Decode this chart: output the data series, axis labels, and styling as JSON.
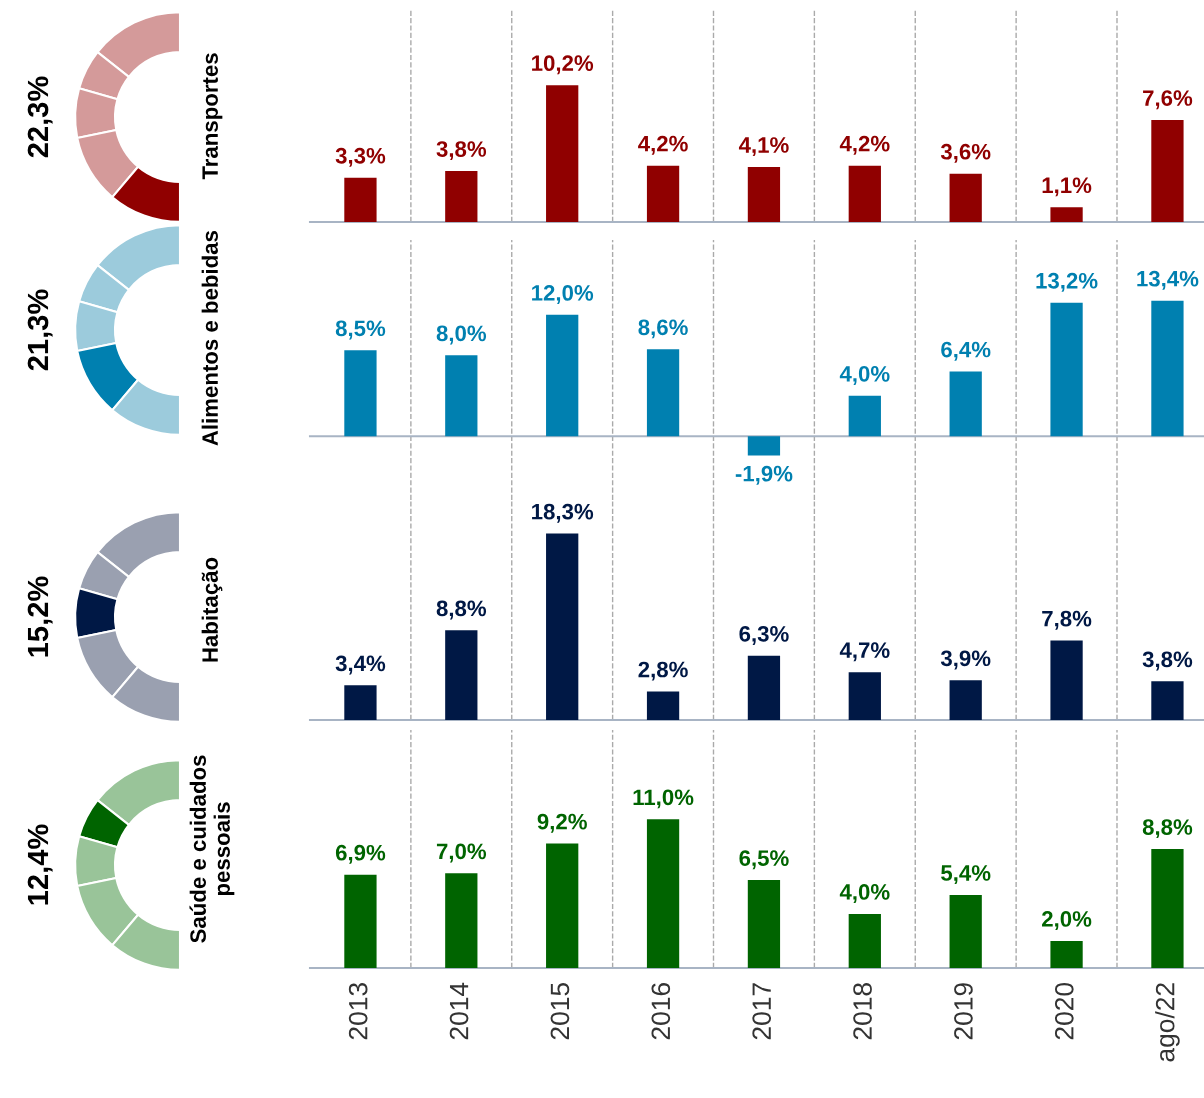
{
  "chart_data": [
    {
      "type": "donut",
      "categories": [
        null,
        null,
        null,
        null,
        null
      ],
      "values": [
        28.8,
        12.4,
        15.2,
        21.3,
        22.3
      ],
      "colors": [
        "#d49a9a",
        "#d49a9a",
        "#d49a9a",
        "#d49a9a",
        "#900000"
      ],
      "title": "22,3%"
    },
    {
      "type": "bar",
      "categories": [
        null,
        null,
        null,
        null,
        null,
        null,
        null,
        null,
        null
      ],
      "values": [
        3.3,
        3.8,
        10.2,
        4.2,
        4.1,
        4.2,
        3.6,
        1.1,
        7.6
      ],
      "color": "#900000",
      "value_labels": [
        "3,3%",
        "3,8%",
        "10,2%",
        "4,2%",
        "4,1%",
        "4,2%",
        "3,6%",
        "1,1%",
        "7,6%"
      ],
      "ylabel": "Transportes",
      "ylim": [
        0,
        15.8
      ],
      "grid": "x"
    },
    {
      "type": "donut",
      "categories": [
        null,
        null,
        null,
        null,
        null
      ],
      "values": [
        28.8,
        12.4,
        15.2,
        21.3,
        22.3
      ],
      "colors": [
        "#9ccbdc",
        "#9ccbdc",
        "#9ccbdc",
        "#0080b0",
        "#9ccbdc"
      ],
      "title": "21,3%"
    },
    {
      "type": "bar",
      "categories": [
        null,
        null,
        null,
        null,
        null,
        null,
        null,
        null,
        null
      ],
      "values": [
        8.5,
        8.0,
        12.0,
        8.6,
        -1.9,
        4.0,
        6.4,
        13.2,
        13.4
      ],
      "color": "#0080b0",
      "value_labels": [
        "8,5%",
        "8,0%",
        "12,0%",
        "8,6%",
        "-1,9%",
        "4,0%",
        "6,4%",
        "13,2%",
        "13,4%"
      ],
      "ylabel": "Alimentos e bebidas",
      "ylim": [
        -6.3,
        19.4
      ],
      "grid": "x"
    },
    {
      "type": "donut",
      "categories": [
        null,
        null,
        null,
        null,
        null
      ],
      "values": [
        28.8,
        12.4,
        15.2,
        21.3,
        22.3
      ],
      "colors": [
        "#9aa0b0",
        "#9aa0b0",
        "#001845",
        "#9aa0b0",
        "#9aa0b0"
      ],
      "title": "15,2%"
    },
    {
      "type": "bar",
      "categories": [
        null,
        null,
        null,
        null,
        null,
        null,
        null,
        null,
        null
      ],
      "values": [
        3.4,
        8.8,
        18.3,
        2.8,
        6.3,
        4.7,
        3.9,
        7.8,
        3.8
      ],
      "color": "#001845",
      "value_labels": [
        "3,4%",
        "8,8%",
        "18,3%",
        "2,8%",
        "6,3%",
        "4,7%",
        "3,9%",
        "7,8%",
        "3,8%"
      ],
      "ylabel": "Habitação",
      "ylim": [
        0,
        21.6
      ],
      "grid": "x"
    },
    {
      "type": "donut",
      "categories": [
        null,
        null,
        null,
        null,
        null
      ],
      "values": [
        28.8,
        12.4,
        15.2,
        21.3,
        22.3
      ],
      "colors": [
        "#99c499",
        "#006400",
        "#99c499",
        "#99c499",
        "#99c499"
      ],
      "title": "12,4%"
    },
    {
      "type": "bar",
      "categories": [
        "2013",
        "2014",
        "2015",
        "2016",
        "2017",
        "2018",
        "2019",
        "2020",
        "ago/22"
      ],
      "values": [
        6.9,
        7.0,
        9.2,
        11.0,
        6.5,
        4.0,
        5.4,
        2.0,
        8.8
      ],
      "color": "#006400",
      "value_labels": [
        "6,9%",
        "7,0%",
        "9,2%",
        "11,0%",
        "6,5%",
        "4,0%",
        "5,4%",
        "2,0%",
        "8,8%"
      ],
      "ylabel": "Saúde e cuidados\npessoais",
      "ylim": [
        0,
        17.6
      ],
      "grid": "x",
      "tick_labels": "x"
    }
  ]
}
